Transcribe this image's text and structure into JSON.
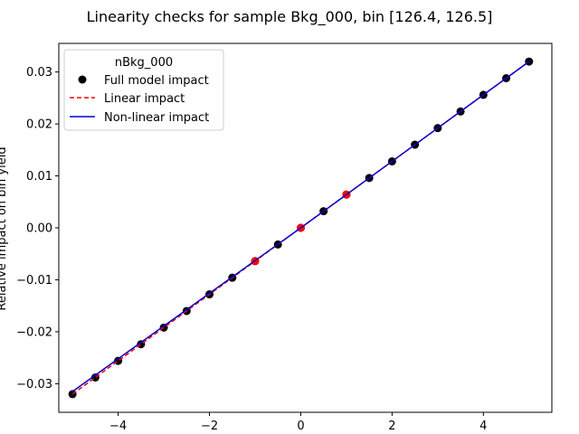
{
  "chart_data": {
    "type": "scatter",
    "title": "Linearity checks for sample Bkg_000, bin [126.4, 126.5]",
    "xlabel": "",
    "ylabel": "Relative impact on bin yield",
    "xlim": [
      -5.3,
      5.5
    ],
    "ylim": [
      -0.0355,
      0.0355
    ],
    "xticks": [
      -4,
      -2,
      0,
      2,
      4
    ],
    "xtick_labels": [
      "−4",
      "−2",
      "0",
      "2",
      "4"
    ],
    "yticks": [
      -0.03,
      -0.02,
      -0.01,
      0.0,
      0.01,
      0.02,
      0.03
    ],
    "ytick_labels": [
      "−0.03",
      "−0.02",
      "−0.01",
      "0.00",
      "0.01",
      "0.02",
      "0.03"
    ],
    "grid": false,
    "legend": {
      "title": "nBkg_000",
      "placement": "upper-left",
      "entries": [
        "Full model impact",
        "Linear impact",
        "Non-linear impact"
      ]
    },
    "series": [
      {
        "name": "Full model impact",
        "kind": "points",
        "color": "#000000",
        "x": [
          -5.0,
          -4.5,
          -4.0,
          -3.5,
          -3.0,
          -2.5,
          -2.0,
          -1.5,
          -1.0,
          -0.5,
          0.0,
          0.5,
          1.0,
          1.5,
          2.0,
          2.5,
          3.0,
          3.5,
          4.0,
          4.5,
          5.0
        ],
        "y": [
          -0.032,
          -0.0288,
          -0.0256,
          -0.0224,
          -0.0192,
          -0.016,
          -0.0128,
          -0.0096,
          -0.0064,
          -0.0032,
          0.0,
          0.0032,
          0.0064,
          0.0096,
          0.0128,
          0.016,
          0.0192,
          0.0224,
          0.0256,
          0.0288,
          0.032
        ]
      },
      {
        "name": "Linear fit points",
        "kind": "points",
        "color": "#ff0000",
        "x": [
          -1.0,
          0.0,
          1.0
        ],
        "y": [
          -0.0064,
          0.0,
          0.0064
        ]
      },
      {
        "name": "Linear impact",
        "kind": "line",
        "style": "dashed",
        "color": "#ff0000",
        "x": [
          -5.0,
          5.0
        ],
        "y": [
          -0.032,
          0.032
        ]
      },
      {
        "name": "Non-linear impact",
        "kind": "line",
        "style": "solid",
        "color": "#0000cc",
        "x": [
          -5.0,
          -4.0,
          -3.0,
          -2.0,
          -1.0,
          0.0,
          1.0,
          2.0,
          3.0,
          4.0,
          5.0
        ],
        "y": [
          -0.0315,
          -0.0252,
          -0.0189,
          -0.0126,
          -0.0063,
          0.0,
          0.0064,
          0.0128,
          0.0192,
          0.0256,
          0.032
        ]
      }
    ]
  }
}
